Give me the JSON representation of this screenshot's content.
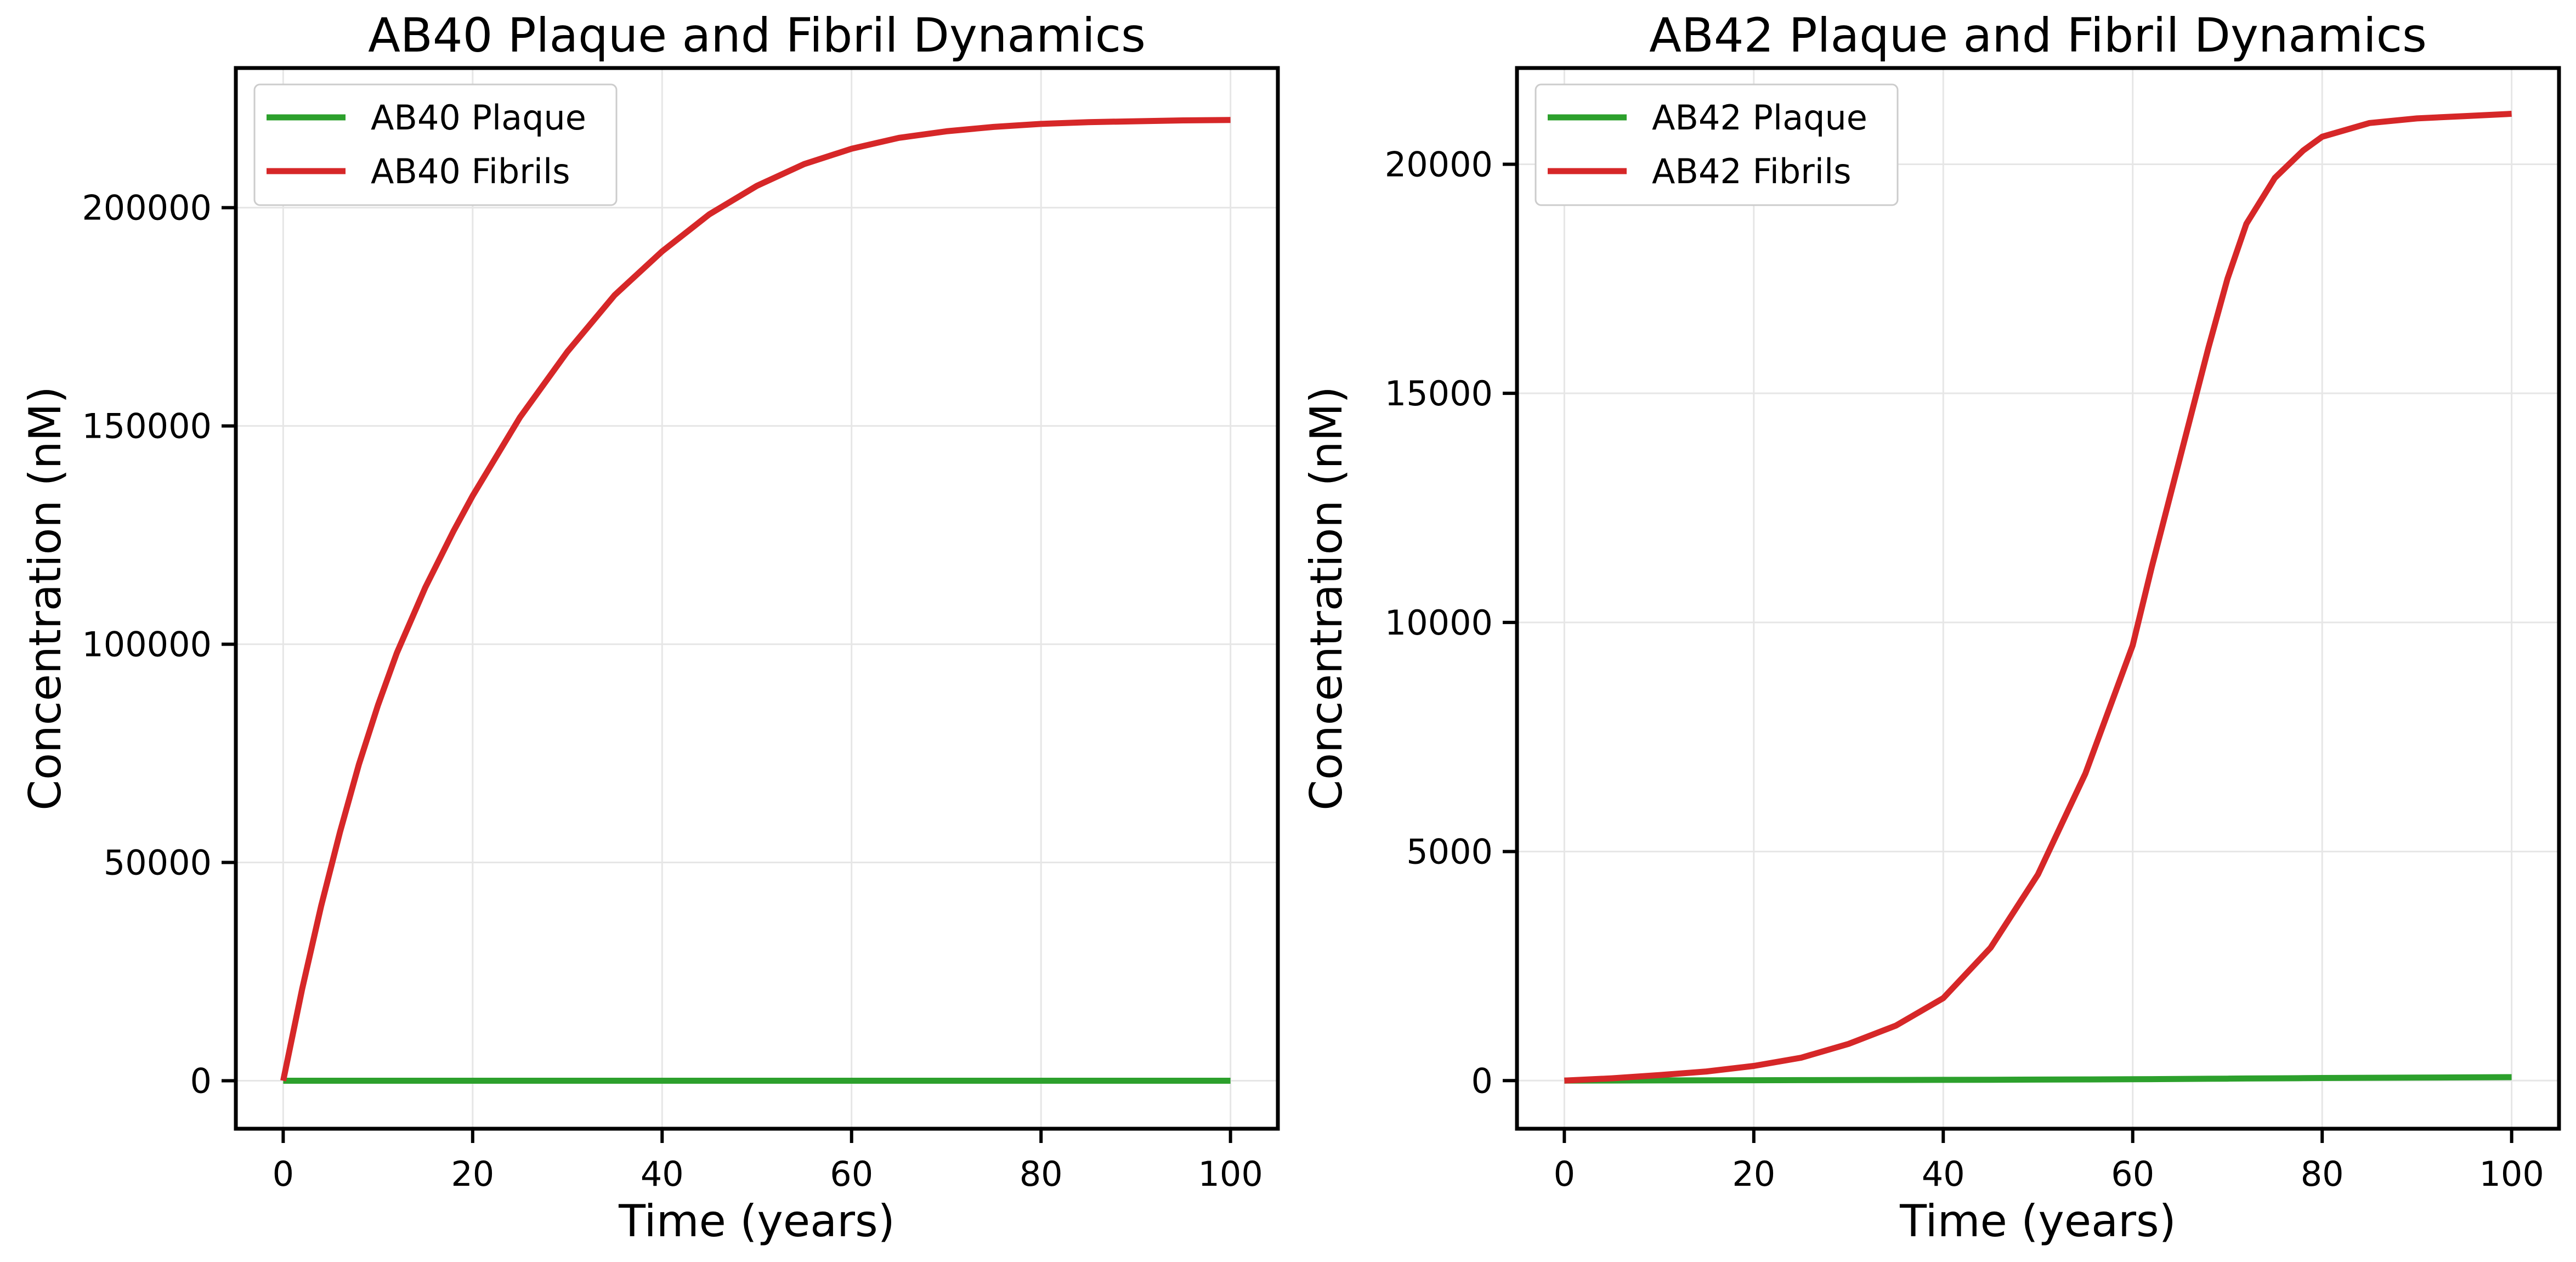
{
  "chart_data": [
    {
      "type": "line",
      "title": "AB40 Plaque and Fibril Dynamics",
      "xlabel": "Time (years)",
      "ylabel": "Concentration (nM)",
      "xlim": [
        -5,
        105
      ],
      "ylim": [
        -11000,
        232000
      ],
      "xticks": [
        0,
        20,
        40,
        60,
        80,
        100
      ],
      "xtick_labels": [
        "0",
        "20",
        "40",
        "60",
        "80",
        "100"
      ],
      "yticks": [
        0,
        50000,
        100000,
        150000,
        200000
      ],
      "ytick_labels": [
        "0",
        "50000",
        "100000",
        "150000",
        "200000"
      ],
      "grid": true,
      "legend_position": "upper-left",
      "x": [
        0,
        2,
        4,
        6,
        8,
        10,
        12,
        15,
        18,
        20,
        25,
        30,
        35,
        40,
        45,
        50,
        55,
        60,
        65,
        70,
        75,
        80,
        85,
        90,
        95,
        100
      ],
      "series": [
        {
          "name": "AB40 Plaque",
          "color": "#2ca02c",
          "values": [
            0,
            0,
            0,
            0,
            0,
            0,
            0,
            0,
            0,
            0,
            0,
            0,
            0,
            0,
            0,
            0,
            0,
            0,
            0,
            0,
            0,
            0,
            0,
            0,
            0,
            0
          ]
        },
        {
          "name": "AB40 Fibrils",
          "color": "#d62728",
          "values": [
            0,
            21000,
            40000,
            57000,
            72500,
            86000,
            98000,
            113000,
            126000,
            134000,
            152000,
            167000,
            180000,
            190000,
            198500,
            205000,
            210000,
            213500,
            216000,
            217500,
            218500,
            219200,
            219600,
            219800,
            220000,
            220100
          ]
        }
      ]
    },
    {
      "type": "line",
      "title": "AB42 Plaque and Fibril Dynamics",
      "xlabel": "Time (years)",
      "ylabel": "Concentration (nM)",
      "xlim": [
        -5,
        105
      ],
      "ylim": [
        -1050,
        22100
      ],
      "xticks": [
        0,
        20,
        40,
        60,
        80,
        100
      ],
      "xtick_labels": [
        "0",
        "20",
        "40",
        "60",
        "80",
        "100"
      ],
      "yticks": [
        0,
        5000,
        10000,
        15000,
        20000
      ],
      "ytick_labels": [
        "0",
        "5000",
        "10000",
        "15000",
        "20000"
      ],
      "grid": true,
      "legend_position": "upper-left",
      "x": [
        0,
        5,
        10,
        15,
        20,
        25,
        30,
        35,
        40,
        45,
        50,
        55,
        60,
        62,
        65,
        68,
        70,
        72,
        75,
        78,
        80,
        85,
        90,
        95,
        100
      ],
      "series": [
        {
          "name": "AB42 Plaque",
          "color": "#2ca02c",
          "values": [
            0,
            2,
            4,
            6,
            8,
            10,
            12,
            14,
            16,
            19,
            22,
            26,
            30,
            32,
            36,
            40,
            43,
            46,
            50,
            54,
            57,
            62,
            66,
            70,
            75
          ]
        },
        {
          "name": "AB42 Fibrils",
          "color": "#d62728",
          "values": [
            0,
            50,
            120,
            200,
            320,
            500,
            800,
            1200,
            1800,
            2900,
            4500,
            6700,
            9500,
            11200,
            13600,
            16000,
            17500,
            18700,
            19700,
            20300,
            20600,
            20900,
            21000,
            21050,
            21100
          ]
        }
      ]
    }
  ]
}
